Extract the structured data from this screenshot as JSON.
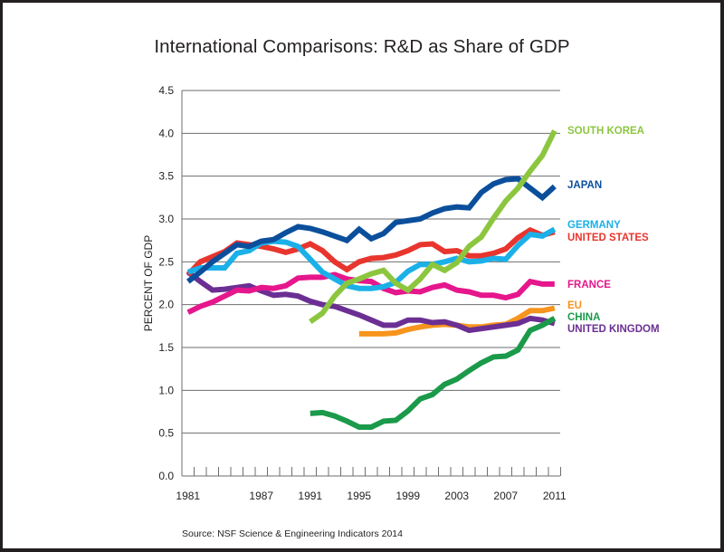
{
  "chart_data": {
    "type": "line",
    "title": "International Comparisons: R&D as Share of GDP",
    "xlabel": "",
    "ylabel": "PERCENT OF GDP",
    "ylim": [
      0,
      4.5
    ],
    "xlim": [
      1981,
      2011
    ],
    "yticks": [
      "0.0",
      "0.5",
      "1.0",
      "1.5",
      "2.0",
      "2.5",
      "3.0",
      "3.5",
      "4.0",
      "4.5"
    ],
    "xtick_labels": [
      "1981",
      "1987",
      "1991",
      "1995",
      "1999",
      "2003",
      "2007",
      "2011"
    ],
    "grid": "horizontal",
    "legend": "direct-labels-right",
    "source": "Source: NSF Science & Engineering Indicators 2014",
    "series": [
      {
        "name": "SOUTH KOREA",
        "color": "#8cc63f",
        "start": 1991,
        "values": [
          1.8,
          1.9,
          2.1,
          2.25,
          2.3,
          2.36,
          2.4,
          2.25,
          2.17,
          2.3,
          2.47,
          2.4,
          2.49,
          2.68,
          2.79,
          3.01,
          3.21,
          3.36,
          3.56,
          3.74,
          4.03
        ]
      },
      {
        "name": "JAPAN",
        "color": "#0b4f9c",
        "start": 1981,
        "values": [
          2.27,
          2.38,
          2.5,
          2.6,
          2.7,
          2.68,
          2.74,
          2.76,
          2.84,
          2.91,
          2.89,
          2.85,
          2.8,
          2.75,
          2.88,
          2.77,
          2.83,
          2.96,
          2.98,
          3.0,
          3.07,
          3.12,
          3.14,
          3.13,
          3.31,
          3.41,
          3.46,
          3.47,
          3.36,
          3.25,
          3.38
        ]
      },
      {
        "name": "GERMANY",
        "color": "#1bb0e8",
        "start": 1981,
        "values": [
          2.38,
          2.43,
          2.43,
          2.43,
          2.6,
          2.63,
          2.72,
          2.74,
          2.73,
          2.68,
          2.53,
          2.38,
          2.3,
          2.22,
          2.19,
          2.19,
          2.21,
          2.26,
          2.39,
          2.47,
          2.47,
          2.5,
          2.54,
          2.5,
          2.51,
          2.54,
          2.53,
          2.69,
          2.82,
          2.8,
          2.88
        ]
      },
      {
        "name": "UNITED STATES",
        "color": "#e8352e",
        "start": 1981,
        "values": [
          2.35,
          2.5,
          2.56,
          2.62,
          2.72,
          2.7,
          2.68,
          2.65,
          2.61,
          2.65,
          2.71,
          2.63,
          2.5,
          2.41,
          2.5,
          2.54,
          2.55,
          2.58,
          2.63,
          2.7,
          2.71,
          2.62,
          2.63,
          2.57,
          2.57,
          2.6,
          2.65,
          2.78,
          2.87,
          2.81,
          2.85
        ]
      },
      {
        "name": "FRANCE",
        "color": "#e6168c",
        "start": 1981,
        "values": [
          1.91,
          1.98,
          2.03,
          2.1,
          2.17,
          2.16,
          2.2,
          2.19,
          2.22,
          2.31,
          2.32,
          2.32,
          2.35,
          2.3,
          2.28,
          2.27,
          2.19,
          2.14,
          2.16,
          2.15,
          2.2,
          2.23,
          2.17,
          2.15,
          2.11,
          2.11,
          2.08,
          2.12,
          2.27,
          2.24,
          2.24
        ]
      },
      {
        "name": "EU",
        "color": "#f7941d",
        "start": 1995,
        "values": [
          1.66,
          1.66,
          1.66,
          1.67,
          1.71,
          1.74,
          1.76,
          1.77,
          1.76,
          1.74,
          1.74,
          1.76,
          1.77,
          1.84,
          1.93,
          1.93,
          1.96
        ]
      },
      {
        "name": "CHINA",
        "color": "#1a9a4a",
        "start": 1991,
        "values": [
          0.73,
          0.74,
          0.7,
          0.64,
          0.57,
          0.57,
          0.64,
          0.65,
          0.76,
          0.9,
          0.95,
          1.07,
          1.13,
          1.23,
          1.32,
          1.39,
          1.4,
          1.47,
          1.7,
          1.76,
          1.84
        ]
      },
      {
        "name": "UNITED KINGDOM",
        "color": "#6b2f94",
        "start": 1981,
        "values": [
          2.38,
          2.27,
          2.17,
          2.18,
          2.2,
          2.22,
          2.16,
          2.11,
          2.12,
          2.1,
          2.04,
          2.0,
          1.98,
          1.93,
          1.88,
          1.82,
          1.76,
          1.76,
          1.82,
          1.82,
          1.79,
          1.8,
          1.76,
          1.7,
          1.72,
          1.74,
          1.76,
          1.78,
          1.84,
          1.82,
          1.78
        ]
      }
    ],
    "label_order": [
      "SOUTH KOREA",
      "JAPAN",
      "GERMANY",
      "UNITED STATES",
      "FRANCE",
      "EU",
      "CHINA",
      "UNITED KINGDOM"
    ]
  }
}
